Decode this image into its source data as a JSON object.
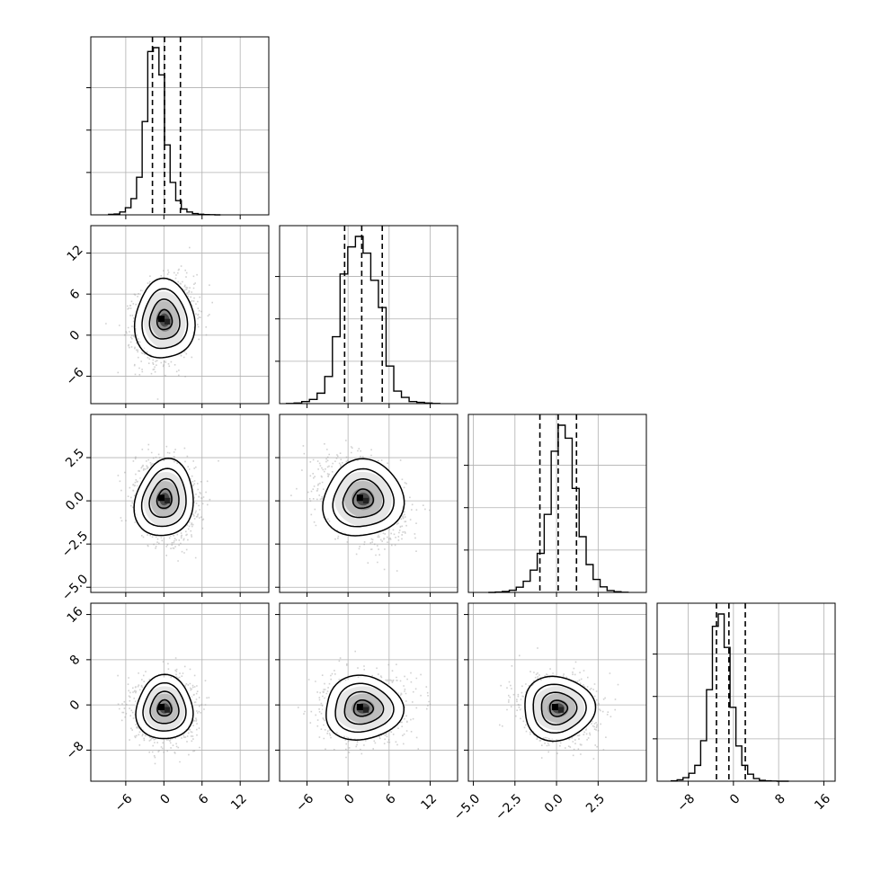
{
  "chart_data": {
    "type": "corner",
    "grid": true,
    "dimensions": 4,
    "params": [
      {
        "index": 0,
        "xlim": [
          -11.5,
          16.5
        ],
        "ticks": [
          -6,
          0,
          6,
          12
        ],
        "tick_labels": [
          "−6",
          "0",
          "6",
          "12"
        ],
        "quantiles": [
          -1.8,
          0.1,
          2.6
        ],
        "mean": 0.1,
        "sd": 2.2
      },
      {
        "index": 1,
        "xlim": [
          -10.0,
          16.0
        ],
        "ticks": [
          -6,
          0,
          6,
          12
        ],
        "tick_labels": [
          "−6",
          "0",
          "6",
          "12"
        ],
        "quantiles": [
          -0.5,
          2.0,
          5.0
        ],
        "mean": 2.2,
        "sd": 2.8
      },
      {
        "index": 2,
        "xlim": [
          -5.3,
          5.4
        ],
        "ticks": [
          -5.0,
          -2.5,
          0.0,
          2.5
        ],
        "tick_labels": [
          "−5.0",
          "−2.5",
          "0.0",
          "2.5"
        ],
        "quantiles": [
          -1.0,
          0.1,
          1.2
        ],
        "mean": 0.1,
        "sd": 1.05
      },
      {
        "index": 3,
        "xlim": [
          -13.5,
          18.0
        ],
        "ticks": [
          -8,
          0,
          8,
          16
        ],
        "tick_labels": [
          "−8",
          "0",
          "8",
          "16"
        ],
        "quantiles": [
          -3.0,
          -0.8,
          2.1
        ],
        "mean": -0.6,
        "sd": 2.6
      }
    ],
    "y_panels": [
      {
        "row": 1,
        "ylim": [
          -10.0,
          16.0
        ],
        "ticks": [
          -6,
          0,
          6,
          12
        ],
        "tick_labels": [
          "−6",
          "0",
          "6",
          "12"
        ]
      },
      {
        "row": 2,
        "ylim": [
          -5.3,
          5.0
        ],
        "ticks": [
          -5.0,
          -2.5,
          0.0,
          2.5
        ],
        "tick_labels": [
          "−5.0",
          "−2.5",
          "0.0",
          "2.5"
        ]
      },
      {
        "row": 3,
        "ylim": [
          -13.5,
          18.0
        ],
        "ticks": [
          -8,
          0,
          8,
          16
        ],
        "tick_labels": [
          "−8",
          "0",
          "8",
          "16"
        ]
      }
    ],
    "histograms": [
      {
        "param": 0,
        "counts": [
          4,
          6,
          22,
          55,
          125,
          290,
          720,
          1260,
          1290,
          1080,
          540,
          250,
          110,
          45,
          22,
          10,
          5,
          2,
          1,
          0
        ]
      },
      {
        "param": 1,
        "counts": [
          1,
          3,
          10,
          20,
          50,
          130,
          320,
          620,
          750,
          800,
          720,
          590,
          460,
          180,
          60,
          30,
          10,
          6,
          3,
          1
        ]
      },
      {
        "param": 2,
        "counts": [
          0,
          2,
          5,
          12,
          28,
          60,
          120,
          210,
          420,
          760,
          900,
          830,
          560,
          300,
          150,
          70,
          30,
          10,
          4,
          1
        ]
      },
      {
        "param": 3,
        "counts": [
          2,
          8,
          20,
          45,
          90,
          230,
          520,
          880,
          950,
          760,
          420,
          200,
          90,
          40,
          15,
          5,
          2,
          1,
          0,
          0
        ]
      }
    ],
    "joint": [
      {
        "x_param": 0,
        "y_param": 1,
        "rho": 0.15,
        "skew": 0.0
      },
      {
        "x_param": 0,
        "y_param": 2,
        "rho": -0.15,
        "skew": 0.25
      },
      {
        "x_param": 1,
        "y_param": 2,
        "rho": -0.35,
        "skew": 0.2
      },
      {
        "x_param": 0,
        "y_param": 3,
        "rho": 0.0,
        "skew": 0.0
      },
      {
        "x_param": 1,
        "y_param": 3,
        "rho": 0.05,
        "skew": 0.15
      },
      {
        "x_param": 2,
        "y_param": 3,
        "rho": -0.1,
        "skew": 0.15
      }
    ],
    "contour_levels_sigma": [
      0.5,
      1.0,
      1.5,
      2.0
    ],
    "colors": {
      "hist_line": "#000000",
      "grid": "#b0b0b0",
      "scatter": "#9a9a9a",
      "density": "#000000",
      "quantile_line": "#000000"
    }
  }
}
